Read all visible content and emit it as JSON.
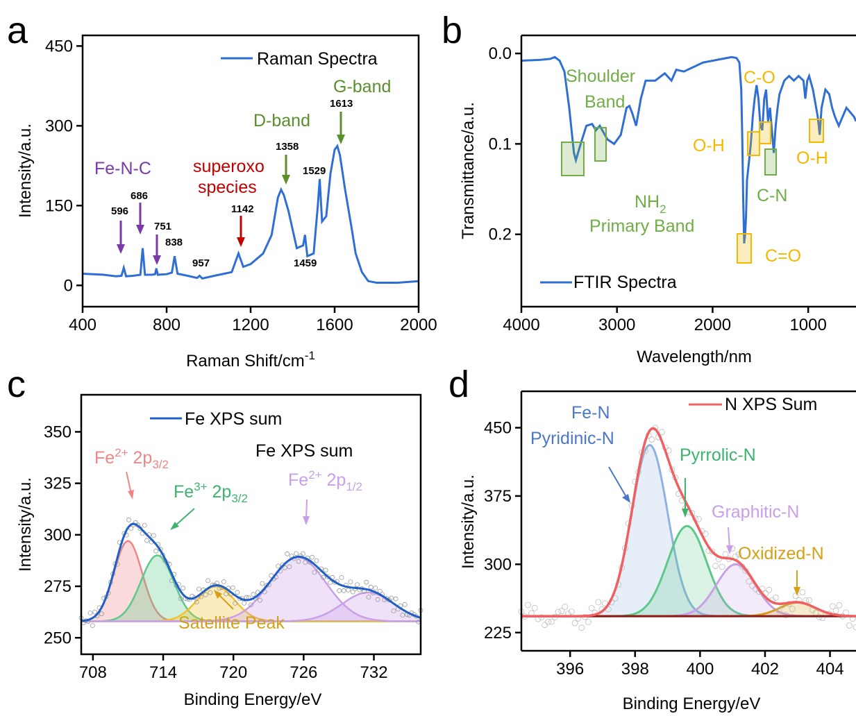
{
  "colors": {
    "spectrum": "#2f6fd3",
    "purple": "#7a3aa8",
    "red": "#c00000",
    "green": "#5a8f2a",
    "lightgreen": "#70ad47",
    "orange": "#f5b800",
    "fe_sum": "#1f5fc8",
    "fe2_32": "#f08585",
    "fe3_32": "#5cc98a",
    "sat": "#f2c12e",
    "fe2_12": "#c9a0e8",
    "n_sum": "#f06060",
    "pyridinic": "#8fb2e0",
    "pyrrolic": "#5cc98a",
    "graphitic": "#c9a0e8",
    "oxidized": "#d4a017",
    "baseline": "#8b1a1a"
  },
  "panels": {
    "a": "a",
    "b": "b",
    "c": "c",
    "d": "d"
  },
  "chart_data": [
    {
      "panel": "a",
      "type": "line",
      "xlabel": "Raman Shift/cm",
      "xlabel_sup": "-1",
      "ylabel": "Intensity/a.u.",
      "xlim": [
        400,
        2000
      ],
      "ylim": [
        -40,
        470
      ],
      "xticks": [
        "400",
        "800",
        "1200",
        "1600",
        "2000"
      ],
      "yticks": [
        "0",
        "150",
        "300",
        "450"
      ],
      "series": [
        {
          "name": "Raman Spectra",
          "x": [
            400,
            500,
            560,
            585,
            596,
            607,
            640,
            675,
            686,
            697,
            730,
            745,
            751,
            758,
            800,
            825,
            838,
            852,
            900,
            945,
            957,
            970,
            1050,
            1110,
            1142,
            1165,
            1200,
            1260,
            1300,
            1330,
            1345,
            1358,
            1380,
            1420,
            1450,
            1459,
            1470,
            1500,
            1520,
            1529,
            1540,
            1560,
            1580,
            1600,
            1613,
            1625,
            1650,
            1680,
            1700,
            1730,
            1760,
            1800,
            1900,
            2000
          ],
          "y": [
            22,
            20,
            17,
            18,
            33,
            17,
            18,
            20,
            70,
            20,
            20,
            21,
            32,
            20,
            21,
            24,
            55,
            22,
            18,
            14,
            18,
            13,
            20,
            25,
            60,
            35,
            40,
            60,
            95,
            165,
            180,
            170,
            140,
            70,
            75,
            95,
            55,
            60,
            150,
            200,
            120,
            130,
            210,
            255,
            262,
            245,
            180,
            110,
            60,
            25,
            8,
            5,
            5,
            8
          ]
        }
      ],
      "peak_labels": [
        "596",
        "686",
        "751",
        "838",
        "957",
        "1142",
        "1358",
        "1459",
        "1529",
        "1613"
      ],
      "annotations": [
        "Fe-N-C",
        "superoxo",
        "species",
        "D-band",
        "G-band"
      ]
    },
    {
      "panel": "b",
      "type": "line",
      "xlabel": "Wavelength/nm",
      "ylabel": "Transmittance/a.u.",
      "xlim": [
        4000,
        500
      ],
      "ylim": [
        -0.02,
        0.28
      ],
      "ylim_reversed": true,
      "xticks": [
        "4000",
        "3000",
        "2000",
        "1000"
      ],
      "yticks": [
        "0.0",
        "0.1",
        "0.2"
      ],
      "series": [
        {
          "name": "FTIR Spectra",
          "x": [
            4000,
            3800,
            3700,
            3650,
            3600,
            3550,
            3500,
            3450,
            3430,
            3380,
            3320,
            3260,
            3220,
            3180,
            3100,
            3030,
            2960,
            2900,
            2870,
            2840,
            2800,
            2750,
            2700,
            2600,
            2500,
            2430,
            2380,
            2300,
            2100,
            1900,
            1800,
            1750,
            1720,
            1700,
            1690,
            1680,
            1670,
            1660,
            1650,
            1640,
            1620,
            1600,
            1580,
            1560,
            1540,
            1520,
            1500,
            1480,
            1460,
            1440,
            1420,
            1400,
            1380,
            1360,
            1340,
            1320,
            1300,
            1250,
            1200,
            1150,
            1100,
            1050,
            1030,
            1010,
            990,
            950,
            900,
            880,
            860,
            820,
            780,
            750,
            720,
            680,
            640,
            600,
            560,
            520,
            500
          ],
          "y": [
            0.008,
            0.007,
            0.006,
            0.004,
            0.008,
            0.02,
            0.06,
            0.11,
            0.118,
            0.1,
            0.08,
            0.078,
            0.085,
            0.08,
            0.095,
            0.1,
            0.09,
            0.06,
            0.058,
            0.066,
            0.08,
            0.05,
            0.03,
            0.03,
            0.022,
            0.03,
            0.018,
            0.02,
            0.01,
            0.006,
            0.004,
            0.005,
            0.01,
            0.04,
            0.09,
            0.16,
            0.21,
            0.2,
            0.18,
            0.14,
            0.12,
            0.1,
            0.07,
            0.05,
            0.035,
            0.05,
            0.08,
            0.085,
            0.05,
            0.04,
            0.075,
            0.06,
            0.085,
            0.11,
            0.08,
            0.06,
            0.045,
            0.03,
            0.025,
            0.03,
            0.025,
            0.03,
            0.05,
            0.03,
            0.025,
            0.04,
            0.07,
            0.09,
            0.06,
            0.04,
            0.045,
            0.06,
            0.07,
            0.08,
            0.07,
            0.06,
            0.065,
            0.07,
            0.075
          ]
        }
      ],
      "annotations": [
        "Shoulder",
        "Band",
        "C-O",
        "O-H",
        "O-H",
        "C-N",
        "NH",
        "2",
        "Primary Band",
        "C=O"
      ]
    },
    {
      "panel": "c",
      "type": "area",
      "xlabel": "Binding Energy/eV",
      "ylabel": "Intensity/a.u.",
      "xlim": [
        707,
        736
      ],
      "ylim": [
        242,
        368
      ],
      "xticks": [
        "708",
        "714",
        "720",
        "726",
        "732"
      ],
      "yticks": [
        "250",
        "275",
        "300",
        "325",
        "350"
      ],
      "baseline": 258,
      "series": [
        {
          "name": "Fe XPS sum",
          "role": "sum"
        },
        {
          "name": "Fe2+ 2p3/2",
          "center": 711.0,
          "height": 297,
          "sigma": 1.2
        },
        {
          "name": "Fe3+ 2p3/2",
          "center": 713.5,
          "height": 290,
          "sigma": 1.4
        },
        {
          "name": "Satellite Peak",
          "center": 718.5,
          "height": 275,
          "sigma": 1.6
        },
        {
          "name": "Fe2+ 2p1/2",
          "center": 725.5,
          "height": 289,
          "sigma": 2.4
        },
        {
          "name": "Satellite",
          "center": 731.5,
          "height": 272,
          "sigma": 2.2
        }
      ],
      "legend": "Fe XPS sum",
      "texts": {
        "title2": "Fe XPS sum",
        "fe2_base": "Fe",
        "fe2_sup": "2+",
        "p32": " 2p",
        "sub32": "3/2",
        "fe3_sup": "3+",
        "sub12": "1/2",
        "satellite": "Satellite Peak"
      }
    },
    {
      "panel": "d",
      "type": "area",
      "xlabel": "Binding Energy/eV",
      "ylabel": "Intensity/a.u.",
      "xlim": [
        394.5,
        404.8
      ],
      "ylim": [
        205,
        490
      ],
      "xticks": [
        "396",
        "398",
        "400",
        "402",
        "404"
      ],
      "yticks": [
        "225",
        "300",
        "375",
        "450"
      ],
      "baseline": 243,
      "series": [
        {
          "name": "N XPS Sum",
          "role": "sum"
        },
        {
          "name": "Pyridinic-N",
          "center": 398.45,
          "height": 431,
          "sigma": 0.55
        },
        {
          "name": "Pyrrolic-N",
          "center": 399.6,
          "height": 342,
          "sigma": 0.6
        },
        {
          "name": "Graphitic-N",
          "center": 401.1,
          "height": 300,
          "sigma": 0.6
        },
        {
          "name": "Oxidized-N",
          "center": 403.0,
          "height": 258,
          "sigma": 0.55
        }
      ],
      "legend": "N XPS Sum",
      "texts": {
        "fen": "Fe-N",
        "pyridinic": "Pyridinic-N",
        "pyrrolic": "Pyrrolic-N",
        "graphitic": "Graphitic-N",
        "oxidized": "Oxidized-N"
      }
    }
  ]
}
